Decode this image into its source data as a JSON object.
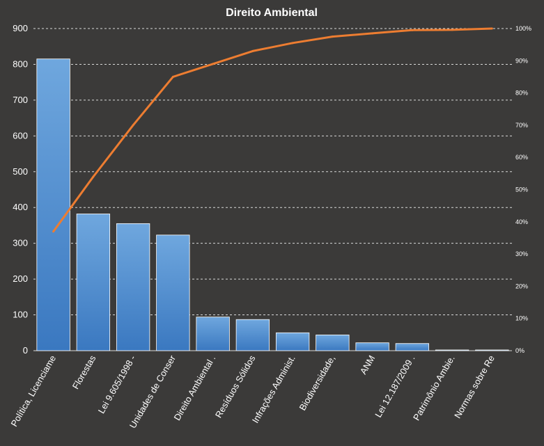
{
  "chart_data": {
    "type": "bar",
    "title": "Direito  Ambiental",
    "categories": [
      "Política, Licenciame",
      "Florestas",
      "Lei 9.605/1998 -",
      "Unidades de Conser",
      "Direito Ambiental .",
      "Resíduos Sólidos",
      "Infrações Administ.",
      "Biodiversidade,",
      "ANM",
      "Lei 12.187/2009 .",
      "Patrimônio Ambie.",
      "Normas sobre Re"
    ],
    "series": [
      {
        "values": [
          815,
          382,
          355,
          323,
          94,
          87,
          50,
          44,
          22,
          20,
          2,
          2
        ]
      },
      {
        "axis": "secondary",
        "values": [
          37,
          54,
          70,
          85,
          89,
          93,
          95.5,
          97.5,
          98.5,
          99.5,
          99.6,
          100
        ]
      }
    ],
    "ylim": [
      0,
      900
    ],
    "y_ticks": [
      "0",
      "100",
      "200",
      "300",
      "400",
      "500",
      "600",
      "700",
      "800",
      "900"
    ],
    "y2lim": [
      0,
      100
    ],
    "y2_ticks": [
      "0%",
      "10%",
      "20%",
      "30%",
      "40%",
      "50%",
      "60%",
      "70%",
      "80%",
      "90%",
      "100%"
    ],
    "grid": true,
    "colors": {
      "bar_top": "#6fa7de",
      "bar_bottom": "#3a78c0",
      "line": "#ed7d31",
      "grid": "#d9d9d9",
      "background": "#3b3a39"
    }
  }
}
